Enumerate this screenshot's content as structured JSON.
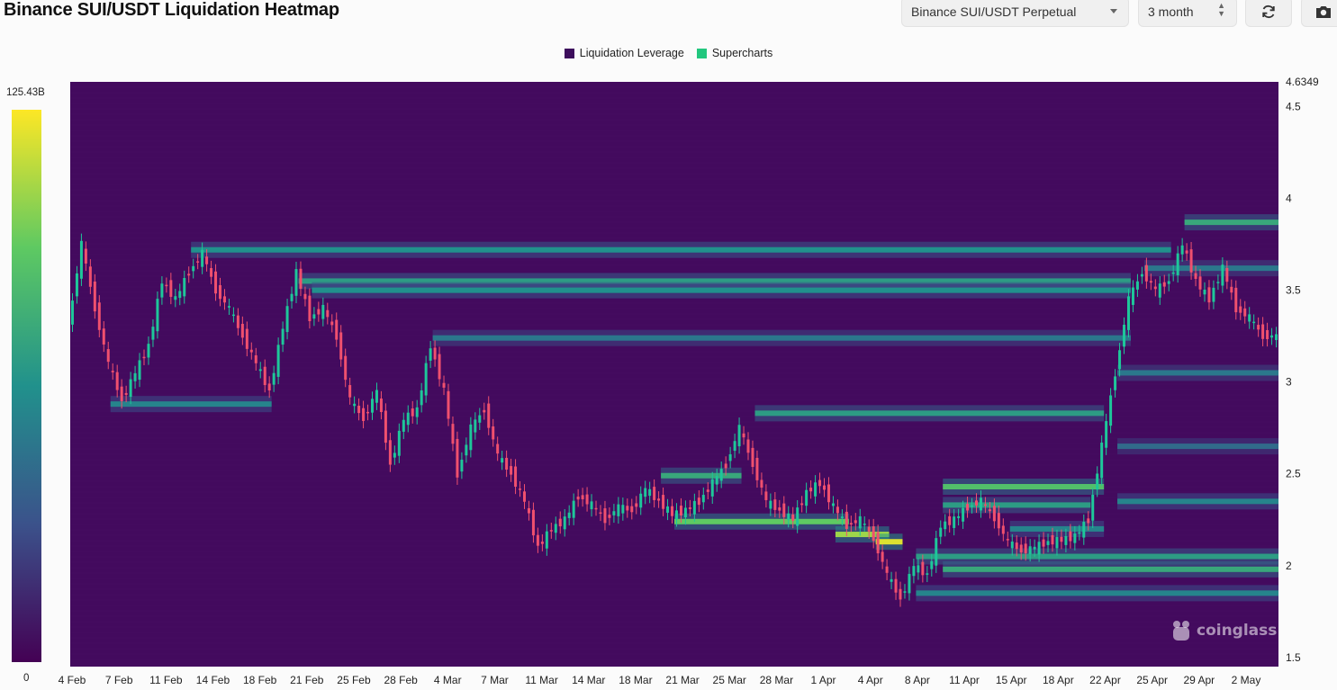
{
  "header": {
    "title": "Binance SUI/USDT Liquidation Heatmap",
    "pair_value": "Binance SUI/USDT Perpetual",
    "range_value": "3 month",
    "refresh_icon": "refresh-icon",
    "camera_icon": "camera-icon"
  },
  "legend": {
    "items": [
      {
        "label": "Liquidation Leverage",
        "color": "#3d0e5c"
      },
      {
        "label": "Supercharts",
        "color": "#22c77e"
      }
    ]
  },
  "colorbar": {
    "max_label": "125.43B",
    "min_label": "0",
    "colors": [
      "#440154",
      "#3b528b",
      "#21918c",
      "#5ec962",
      "#fde725"
    ]
  },
  "watermark": "coinglass",
  "chart_data": {
    "type": "heatmap",
    "title": "Binance SUI/USDT Liquidation Heatmap",
    "y_range": [
      1.45,
      4.6349
    ],
    "y_max_label": "4.6349",
    "y_ticks": [
      "1.5",
      "2",
      "2.5",
      "3",
      "3.5",
      "4",
      "4.5"
    ],
    "x_ticks": [
      "4 Feb",
      "7 Feb",
      "11 Feb",
      "14 Feb",
      "18 Feb",
      "21 Feb",
      "25 Feb",
      "28 Feb",
      "4 Mar",
      "7 Mar",
      "11 Mar",
      "14 Mar",
      "18 Mar",
      "21 Mar",
      "25 Mar",
      "28 Mar",
      "1 Apr",
      "4 Apr",
      "8 Apr",
      "11 Apr",
      "15 Apr",
      "18 Apr",
      "22 Apr",
      "25 Apr",
      "29 Apr",
      "2 May"
    ],
    "x_start": "2025-02-04",
    "x_end": "2025-05-05",
    "price_path": [
      [
        "2025-02-04",
        3.3
      ],
      [
        "2025-02-05",
        3.75
      ],
      [
        "2025-02-06",
        3.4
      ],
      [
        "2025-02-07",
        3.1
      ],
      [
        "2025-02-08",
        2.9
      ],
      [
        "2025-02-09",
        3.05
      ],
      [
        "2025-02-10",
        3.2
      ],
      [
        "2025-02-11",
        3.55
      ],
      [
        "2025-02-12",
        3.45
      ],
      [
        "2025-02-13",
        3.6
      ],
      [
        "2025-02-14",
        3.7
      ],
      [
        "2025-02-15",
        3.5
      ],
      [
        "2025-02-16",
        3.4
      ],
      [
        "2025-02-17",
        3.25
      ],
      [
        "2025-02-18",
        3.1
      ],
      [
        "2025-02-19",
        2.95
      ],
      [
        "2025-02-20",
        3.3
      ],
      [
        "2025-02-21",
        3.6
      ],
      [
        "2025-02-22",
        3.35
      ],
      [
        "2025-02-23",
        3.4
      ],
      [
        "2025-02-24",
        3.25
      ],
      [
        "2025-02-25",
        2.9
      ],
      [
        "2025-02-26",
        2.8
      ],
      [
        "2025-02-27",
        2.95
      ],
      [
        "2025-02-28",
        2.55
      ],
      [
        "2025-03-01",
        2.8
      ],
      [
        "2025-03-02",
        2.85
      ],
      [
        "2025-03-03",
        3.2
      ],
      [
        "2025-03-04",
        2.95
      ],
      [
        "2025-03-05",
        2.5
      ],
      [
        "2025-03-06",
        2.75
      ],
      [
        "2025-03-07",
        2.85
      ],
      [
        "2025-03-08",
        2.6
      ],
      [
        "2025-03-09",
        2.5
      ],
      [
        "2025-03-10",
        2.35
      ],
      [
        "2025-03-11",
        2.1
      ],
      [
        "2025-03-12",
        2.2
      ],
      [
        "2025-03-13",
        2.25
      ],
      [
        "2025-03-14",
        2.38
      ],
      [
        "2025-03-15",
        2.33
      ],
      [
        "2025-03-16",
        2.25
      ],
      [
        "2025-03-17",
        2.32
      ],
      [
        "2025-03-18",
        2.3
      ],
      [
        "2025-03-19",
        2.42
      ],
      [
        "2025-03-20",
        2.35
      ],
      [
        "2025-03-21",
        2.28
      ],
      [
        "2025-03-22",
        2.3
      ],
      [
        "2025-03-23",
        2.35
      ],
      [
        "2025-03-24",
        2.45
      ],
      [
        "2025-03-25",
        2.55
      ],
      [
        "2025-03-26",
        2.75
      ],
      [
        "2025-03-27",
        2.55
      ],
      [
        "2025-03-28",
        2.35
      ],
      [
        "2025-03-29",
        2.3
      ],
      [
        "2025-03-30",
        2.25
      ],
      [
        "2025-03-31",
        2.4
      ],
      [
        "2025-04-01",
        2.45
      ],
      [
        "2025-04-02",
        2.32
      ],
      [
        "2025-04-03",
        2.22
      ],
      [
        "2025-04-04",
        2.25
      ],
      [
        "2025-04-05",
        2.15
      ],
      [
        "2025-04-06",
        1.95
      ],
      [
        "2025-04-07",
        1.82
      ],
      [
        "2025-04-08",
        2.0
      ],
      [
        "2025-04-09",
        1.95
      ],
      [
        "2025-04-10",
        2.22
      ],
      [
        "2025-04-11",
        2.25
      ],
      [
        "2025-04-12",
        2.32
      ],
      [
        "2025-04-13",
        2.35
      ],
      [
        "2025-04-14",
        2.26
      ],
      [
        "2025-04-15",
        2.13
      ],
      [
        "2025-04-16",
        2.08
      ],
      [
        "2025-04-17",
        2.1
      ],
      [
        "2025-04-18",
        2.13
      ],
      [
        "2025-04-19",
        2.14
      ],
      [
        "2025-04-20",
        2.16
      ],
      [
        "2025-04-21",
        2.25
      ],
      [
        "2025-04-22",
        2.65
      ],
      [
        "2025-04-23",
        3.05
      ],
      [
        "2025-04-24",
        3.45
      ],
      [
        "2025-04-25",
        3.6
      ],
      [
        "2025-04-26",
        3.5
      ],
      [
        "2025-04-27",
        3.55
      ],
      [
        "2025-04-28",
        3.75
      ],
      [
        "2025-04-29",
        3.55
      ],
      [
        "2025-04-30",
        3.45
      ],
      [
        "2025-05-01",
        3.62
      ],
      [
        "2025-05-02",
        3.4
      ],
      [
        "2025-05-03",
        3.35
      ],
      [
        "2025-05-04",
        3.25
      ],
      [
        "2025-05-05",
        3.25
      ]
    ],
    "liquidation_bands": [
      {
        "price": 3.72,
        "from": "2025-02-13",
        "to": "2025-04-27",
        "intensity": 0.5
      },
      {
        "price": 3.55,
        "from": "2025-02-21",
        "to": "2025-04-24",
        "intensity": 0.55
      },
      {
        "price": 3.5,
        "from": "2025-02-22",
        "to": "2025-04-24",
        "intensity": 0.5
      },
      {
        "price": 3.24,
        "from": "2025-03-03",
        "to": "2025-04-24",
        "intensity": 0.4
      },
      {
        "price": 2.83,
        "from": "2025-03-27",
        "to": "2025-04-22",
        "intensity": 0.55
      },
      {
        "price": 2.88,
        "from": "2025-02-07",
        "to": "2025-02-19",
        "intensity": 0.45
      },
      {
        "price": 2.49,
        "from": "2025-03-20",
        "to": "2025-03-26",
        "intensity": 0.6
      },
      {
        "price": 2.43,
        "from": "2025-04-10",
        "to": "2025-04-22",
        "intensity": 0.7
      },
      {
        "price": 2.33,
        "from": "2025-04-10",
        "to": "2025-04-21",
        "intensity": 0.55
      },
      {
        "price": 2.24,
        "from": "2025-03-21",
        "to": "2025-04-03",
        "intensity": 0.75
      },
      {
        "price": 2.17,
        "from": "2025-04-02",
        "to": "2025-04-06",
        "intensity": 0.85
      },
      {
        "price": 2.13,
        "from": "2025-04-05",
        "to": "2025-04-07",
        "intensity": 0.95
      },
      {
        "price": 2.2,
        "from": "2025-04-15",
        "to": "2025-04-22",
        "intensity": 0.45
      },
      {
        "price": 2.05,
        "from": "2025-04-08",
        "to": "2025-05-05",
        "intensity": 0.55
      },
      {
        "price": 1.98,
        "from": "2025-04-10",
        "to": "2025-05-05",
        "intensity": 0.6
      },
      {
        "price": 1.85,
        "from": "2025-04-08",
        "to": "2025-05-05",
        "intensity": 0.45
      },
      {
        "price": 3.87,
        "from": "2025-04-28",
        "to": "2025-05-05",
        "intensity": 0.6
      },
      {
        "price": 3.62,
        "from": "2025-04-25",
        "to": "2025-05-05",
        "intensity": 0.4
      },
      {
        "price": 3.05,
        "from": "2025-04-23",
        "to": "2025-05-05",
        "intensity": 0.4
      },
      {
        "price": 2.65,
        "from": "2025-04-23",
        "to": "2025-05-05",
        "intensity": 0.35
      },
      {
        "price": 2.35,
        "from": "2025-04-23",
        "to": "2025-05-05",
        "intensity": 0.45
      }
    ]
  }
}
